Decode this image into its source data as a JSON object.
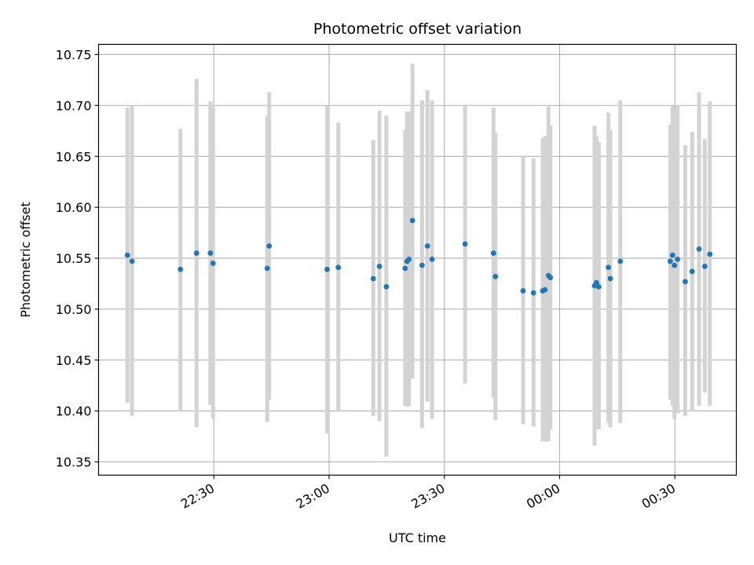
{
  "chart_data": {
    "type": "scatter",
    "title": "Photometric offset variation",
    "xlabel": "UTC time",
    "ylabel": "Photometric offset",
    "x_ticks": [
      "22:30",
      "23:00",
      "23:30",
      "00:00",
      "00:30"
    ],
    "x_tick_minutes": [
      0,
      30,
      60,
      90,
      120
    ],
    "xlim_minutes": [
      -30,
      136
    ],
    "y_ticks": [
      "10.35",
      "10.40",
      "10.45",
      "10.50",
      "10.55",
      "10.60",
      "10.65",
      "10.70",
      "10.75"
    ],
    "ylim": [
      10.337,
      10.76
    ],
    "grid": true,
    "colors": {
      "point": "#1f77b4",
      "errorbar": "#d3d3d3",
      "grid": "#b0b0b0"
    },
    "series": [
      {
        "points": [
          {
            "t": -22.5,
            "y": 10.553,
            "lo": 10.408,
            "hi": 10.698
          },
          {
            "t": -21.3,
            "y": 10.547,
            "lo": 10.395,
            "hi": 10.7
          },
          {
            "t": -8.7,
            "y": 10.539,
            "lo": 10.4,
            "hi": 10.677
          },
          {
            "t": -4.5,
            "y": 10.555,
            "lo": 10.384,
            "hi": 10.726
          },
          {
            "t": -0.9,
            "y": 10.555,
            "lo": 10.406,
            "hi": 10.704
          },
          {
            "t": -0.2,
            "y": 10.545,
            "lo": 10.393,
            "hi": 10.698
          },
          {
            "t": 13.9,
            "y": 10.54,
            "lo": 10.389,
            "hi": 10.69
          },
          {
            "t": 14.4,
            "y": 10.562,
            "lo": 10.411,
            "hi": 10.713
          },
          {
            "t": 29.5,
            "y": 10.539,
            "lo": 10.378,
            "hi": 10.7
          },
          {
            "t": 32.4,
            "y": 10.541,
            "lo": 10.4,
            "hi": 10.683
          },
          {
            "t": 41.5,
            "y": 10.53,
            "lo": 10.395,
            "hi": 10.666
          },
          {
            "t": 43.1,
            "y": 10.542,
            "lo": 10.39,
            "hi": 10.695
          },
          {
            "t": 44.9,
            "y": 10.522,
            "lo": 10.355,
            "hi": 10.69
          },
          {
            "t": 49.8,
            "y": 10.54,
            "lo": 10.405,
            "hi": 10.676
          },
          {
            "t": 50.3,
            "y": 10.547,
            "lo": 10.404,
            "hi": 10.694
          },
          {
            "t": 50.8,
            "y": 10.549,
            "lo": 10.405,
            "hi": 10.694
          },
          {
            "t": 51.7,
            "y": 10.587,
            "lo": 10.432,
            "hi": 10.741
          },
          {
            "t": 54.2,
            "y": 10.543,
            "lo": 10.383,
            "hi": 10.705
          },
          {
            "t": 55.6,
            "y": 10.562,
            "lo": 10.409,
            "hi": 10.715
          },
          {
            "t": 56.8,
            "y": 10.549,
            "lo": 10.392,
            "hi": 10.705
          },
          {
            "t": 65.4,
            "y": 10.564,
            "lo": 10.427,
            "hi": 10.701
          },
          {
            "t": 72.8,
            "y": 10.555,
            "lo": 10.413,
            "hi": 10.698
          },
          {
            "t": 73.3,
            "y": 10.532,
            "lo": 10.391,
            "hi": 10.673
          },
          {
            "t": 80.5,
            "y": 10.518,
            "lo": 10.387,
            "hi": 10.65
          },
          {
            "t": 83.2,
            "y": 10.516,
            "lo": 10.385,
            "hi": 10.648
          },
          {
            "t": 85.6,
            "y": 10.518,
            "lo": 10.37,
            "hi": 10.668
          },
          {
            "t": 86.2,
            "y": 10.519,
            "lo": 10.37,
            "hi": 10.67
          },
          {
            "t": 87.1,
            "y": 10.533,
            "lo": 10.37,
            "hi": 10.699
          },
          {
            "t": 87.6,
            "y": 10.531,
            "lo": 10.382,
            "hi": 10.68
          },
          {
            "t": 99.1,
            "y": 10.523,
            "lo": 10.366,
            "hi": 10.68
          },
          {
            "t": 99.6,
            "y": 10.526,
            "lo": 10.382,
            "hi": 10.67
          },
          {
            "t": 100.2,
            "y": 10.522,
            "lo": 10.382,
            "hi": 10.664
          },
          {
            "t": 102.7,
            "y": 10.541,
            "lo": 10.388,
            "hi": 10.693
          },
          {
            "t": 103.2,
            "y": 10.53,
            "lo": 10.384,
            "hi": 10.676
          },
          {
            "t": 105.8,
            "y": 10.547,
            "lo": 10.388,
            "hi": 10.705
          },
          {
            "t": 118.8,
            "y": 10.547,
            "lo": 10.411,
            "hi": 10.681
          },
          {
            "t": 119.4,
            "y": 10.553,
            "lo": 10.405,
            "hi": 10.7
          },
          {
            "t": 119.9,
            "y": 10.543,
            "lo": 10.392,
            "hi": 10.694
          },
          {
            "t": 120.7,
            "y": 10.549,
            "lo": 10.398,
            "hi": 10.7
          },
          {
            "t": 122.7,
            "y": 10.527,
            "lo": 10.395,
            "hi": 10.661
          },
          {
            "t": 124.5,
            "y": 10.537,
            "lo": 10.4,
            "hi": 10.674
          },
          {
            "t": 126.3,
            "y": 10.559,
            "lo": 10.405,
            "hi": 10.713
          },
          {
            "t": 127.8,
            "y": 10.542,
            "lo": 10.418,
            "hi": 10.667
          },
          {
            "t": 129.1,
            "y": 10.554,
            "lo": 10.405,
            "hi": 10.704
          }
        ]
      }
    ]
  }
}
